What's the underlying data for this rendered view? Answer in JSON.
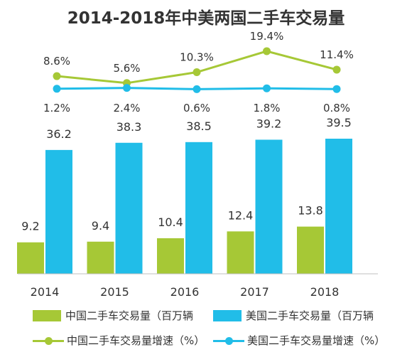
{
  "chart_data": {
    "type": "bar",
    "title": "2014-2018年中美两国二手车交易量",
    "categories": [
      "2014",
      "2015",
      "2016",
      "2017",
      "2018"
    ],
    "series": [
      {
        "name": "中国二手车交易量（百万辆",
        "kind": "bar",
        "color": "#a6c836",
        "values": [
          9.2,
          9.4,
          10.4,
          12.4,
          13.8
        ]
      },
      {
        "name": "美国二手车交易量（百万辆",
        "kind": "bar",
        "color": "#21bde8",
        "values": [
          36.2,
          38.3,
          38.5,
          39.2,
          39.5
        ]
      },
      {
        "name": "中国二手车交易量增速（%）",
        "kind": "line",
        "color": "#a6c836",
        "values": [
          8.6,
          5.6,
          10.3,
          19.4,
          11.4
        ]
      },
      {
        "name": "美国二手车交易量增速（%）",
        "kind": "line",
        "color": "#21bde8",
        "values": [
          1.2,
          2.4,
          0.6,
          1.8,
          0.8
        ]
      }
    ],
    "value_labels": {
      "cn_bar": [
        "9.2",
        "9.4",
        "10.4",
        "12.4",
        "13.8"
      ],
      "us_bar": [
        "36.2",
        "38.3",
        "38.5",
        "39.2",
        "39.5"
      ],
      "cn_line": [
        "8.6%",
        "5.6%",
        "10.3%",
        "19.4%",
        "11.4%"
      ],
      "us_line": [
        "1.2%",
        "2.4%",
        "0.6%",
        "1.8%",
        "0.8%"
      ]
    },
    "xlabel": "",
    "ylabel": "",
    "grid": false,
    "legend_position": "bottom"
  }
}
